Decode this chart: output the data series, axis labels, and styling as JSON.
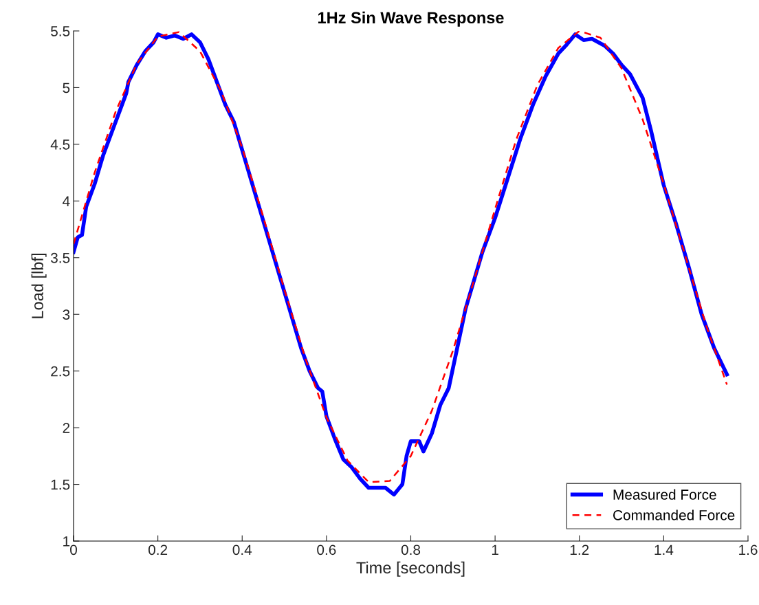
{
  "chart_data": {
    "type": "line",
    "title": "1Hz Sin Wave Response",
    "xlabel": "Time [seconds]",
    "ylabel": "Load [lbf]",
    "xlim": [
      0,
      1.6
    ],
    "xticks": [
      0,
      0.2,
      0.4,
      0.6,
      0.8,
      1,
      1.2,
      1.4,
      1.6
    ],
    "ylim": [
      1,
      5.5
    ],
    "yticks": [
      1,
      1.5,
      2,
      2.5,
      3,
      3.5,
      4,
      4.5,
      5,
      5.5
    ],
    "grid": false,
    "legend": "bottom right",
    "series": [
      {
        "name": "Measured Force",
        "color": "#0000ff",
        "line_style": "solid",
        "x": [
          0,
          0.01,
          0.02,
          0.03,
          0.05,
          0.07,
          0.09,
          0.11,
          0.125,
          0.13,
          0.15,
          0.17,
          0.19,
          0.2,
          0.22,
          0.24,
          0.26,
          0.28,
          0.3,
          0.32,
          0.34,
          0.36,
          0.38,
          0.4,
          0.42,
          0.44,
          0.46,
          0.48,
          0.5,
          0.52,
          0.54,
          0.56,
          0.58,
          0.59,
          0.6,
          0.62,
          0.64,
          0.66,
          0.68,
          0.7,
          0.72,
          0.74,
          0.76,
          0.78,
          0.79,
          0.8,
          0.82,
          0.83,
          0.85,
          0.87,
          0.89,
          0.91,
          0.93,
          0.95,
          0.97,
          1,
          1.03,
          1.06,
          1.09,
          1.12,
          1.15,
          1.17,
          1.19,
          1.21,
          1.23,
          1.26,
          1.28,
          1.3,
          1.32,
          1.35,
          1.37,
          1.4,
          1.43,
          1.46,
          1.49,
          1.52,
          1.55
        ],
        "values": [
          3.55,
          3.68,
          3.7,
          3.95,
          4.15,
          4.4,
          4.6,
          4.8,
          4.95,
          5.05,
          5.2,
          5.32,
          5.4,
          5.47,
          5.44,
          5.46,
          5.43,
          5.47,
          5.4,
          5.25,
          5.05,
          4.85,
          4.7,
          4.45,
          4.2,
          3.95,
          3.7,
          3.45,
          3.2,
          2.95,
          2.7,
          2.5,
          2.35,
          2.32,
          2.1,
          1.9,
          1.72,
          1.65,
          1.55,
          1.47,
          1.47,
          1.47,
          1.41,
          1.5,
          1.75,
          1.88,
          1.88,
          1.79,
          1.95,
          2.2,
          2.35,
          2.7,
          3.05,
          3.3,
          3.55,
          3.85,
          4.2,
          4.55,
          4.85,
          5.1,
          5.3,
          5.38,
          5.47,
          5.42,
          5.43,
          5.37,
          5.3,
          5.2,
          5.12,
          4.91,
          4.62,
          4.14,
          3.79,
          3.41,
          3.0,
          2.7,
          2.47
        ]
      },
      {
        "name": "Commanded Force",
        "color": "#ff0000",
        "line_style": "dashed",
        "x": [
          0,
          0.05,
          0.1,
          0.15,
          0.2,
          0.25,
          0.3,
          0.35,
          0.4,
          0.45,
          0.5,
          0.55,
          0.6,
          0.65,
          0.7,
          0.75,
          0.8,
          0.85,
          0.9,
          0.95,
          1,
          1.05,
          1.1,
          1.15,
          1.2,
          1.25,
          1.3,
          1.35,
          1.4,
          1.45,
          1.5,
          1.55
        ],
        "values": [
          3.62,
          4.25,
          4.79,
          5.21,
          5.45,
          5.49,
          5.32,
          4.97,
          4.47,
          3.86,
          3.22,
          2.61,
          2.09,
          1.71,
          1.52,
          1.53,
          1.75,
          2.15,
          2.68,
          3.3,
          3.93,
          4.54,
          5.02,
          5.35,
          5.5,
          5.44,
          5.17,
          4.72,
          4.15,
          3.53,
          2.91,
          2.38
        ]
      }
    ]
  }
}
